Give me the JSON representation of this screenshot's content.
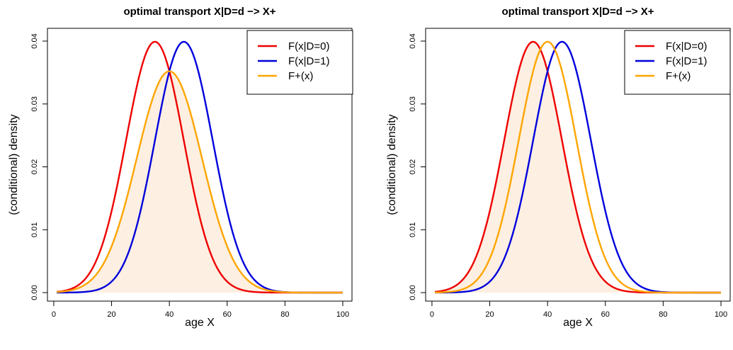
{
  "chart_data": [
    {
      "type": "line",
      "title": "optimal transport X|D=d −> X+",
      "xlabel": "age X",
      "ylabel": "(conditional) density",
      "xlim": [
        1,
        100
      ],
      "ylim": [
        0,
        0.04
      ],
      "xticks": [
        "0",
        "20",
        "40",
        "60",
        "80",
        "100"
      ],
      "yticks": [
        "0.00",
        "0.01",
        "0.02",
        "0.03",
        "0.04"
      ],
      "legend_position": "top-right",
      "fill_series_index": 2,
      "fill_color": "#fdefe1",
      "series": [
        {
          "name": "F(x|D=0)",
          "color": "#ee0000",
          "mean": 35,
          "sd": 10,
          "peak": 0.0399
        },
        {
          "name": "F(x|D=1)",
          "color": "#0000dd",
          "mean": 45,
          "sd": 10,
          "peak": 0.0399
        },
        {
          "name": "F+(x)",
          "color": "#ffa500",
          "mean": 40,
          "sd": 11.3,
          "peak": 0.0352
        }
      ]
    },
    {
      "type": "line",
      "title": "optimal transport X|D=d −> X+",
      "xlabel": "age X",
      "ylabel": "(conditional) density",
      "xlim": [
        1,
        100
      ],
      "ylim": [
        0,
        0.04
      ],
      "xticks": [
        "0",
        "20",
        "40",
        "60",
        "80",
        "100"
      ],
      "yticks": [
        "0.00",
        "0.01",
        "0.02",
        "0.03",
        "0.04"
      ],
      "legend_position": "top-right",
      "fill_series_index": 0,
      "fill_color": "#fdefe1",
      "series": [
        {
          "name": "F(x|D=0)",
          "color": "#ee0000",
          "mean": 35,
          "sd": 10,
          "peak": 0.0399
        },
        {
          "name": "F(x|D=1)",
          "color": "#0000dd",
          "mean": 45,
          "sd": 10,
          "peak": 0.0399
        },
        {
          "name": "F+(x)",
          "color": "#ffa500",
          "mean": 40,
          "sd": 10,
          "peak": 0.0399
        }
      ]
    }
  ]
}
